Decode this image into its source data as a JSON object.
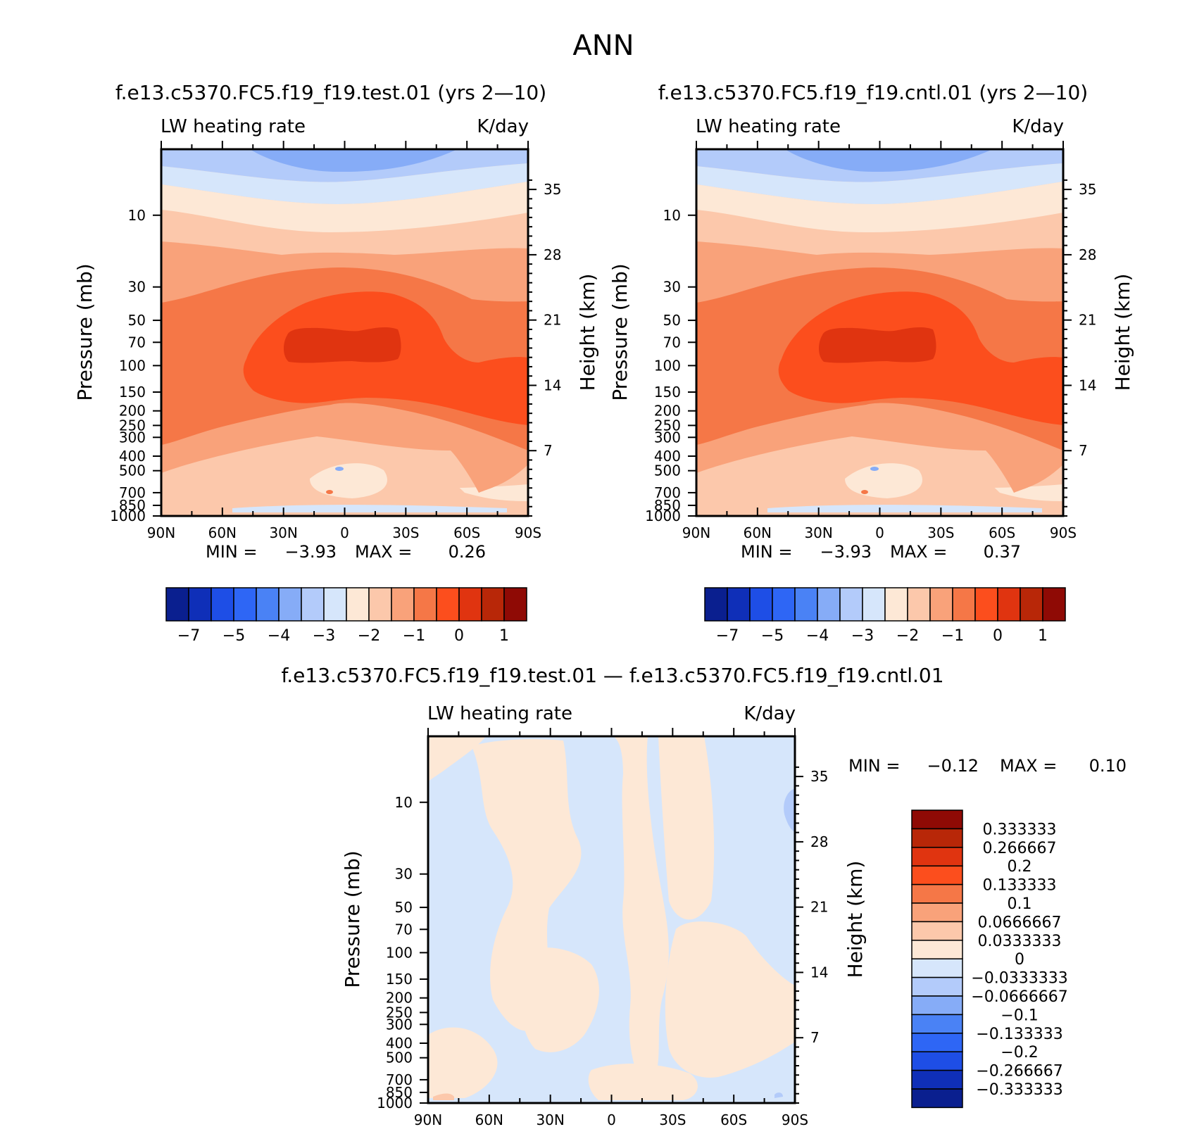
{
  "figure_title": "ANN",
  "chart_data": [
    {
      "type": "heatmap",
      "id": "test",
      "title": "f.e13.c5370.FC5.f19_f19.test.01 (yrs 2—10)",
      "variable_label": "LW heating rate",
      "units_label": "K/day",
      "ylabel": "Pressure (mb)",
      "y2label": "Height (km)",
      "x_tick_labels": [
        "90N",
        "60N",
        "30N",
        "0",
        "30S",
        "60S",
        "90S"
      ],
      "pressure_ticks": [
        "10",
        "30",
        "50",
        "70",
        "100",
        "150",
        "200",
        "250",
        "300",
        "400",
        "500",
        "700",
        "850",
        "1000"
      ],
      "height_ticks": [
        "35",
        "28",
        "21",
        "14",
        "7"
      ],
      "min_label": "MIN =",
      "min_value": "−3.93",
      "max_label": "MAX =",
      "max_value": "0.26",
      "colorbar_labels": [
        "−7",
        "−5",
        "−4",
        "−3",
        "−2",
        "−1",
        "0",
        "1"
      ]
    },
    {
      "type": "heatmap",
      "id": "cntl",
      "title": "f.e13.c5370.FC5.f19_f19.cntl.01 (yrs 2—10)",
      "variable_label": "LW heating rate",
      "units_label": "K/day",
      "ylabel": "Pressure (mb)",
      "y2label": "Height (km)",
      "x_tick_labels": [
        "90N",
        "60N",
        "30N",
        "0",
        "30S",
        "60S",
        "90S"
      ],
      "pressure_ticks": [
        "10",
        "30",
        "50",
        "70",
        "100",
        "150",
        "200",
        "250",
        "300",
        "400",
        "500",
        "700",
        "850",
        "1000"
      ],
      "height_ticks": [
        "35",
        "28",
        "21",
        "14",
        "7"
      ],
      "min_label": "MIN =",
      "min_value": "−3.93",
      "max_label": "MAX =",
      "max_value": "0.37",
      "colorbar_labels": [
        "−7",
        "−5",
        "−4",
        "−3",
        "−2",
        "−1",
        "0",
        "1"
      ]
    },
    {
      "type": "heatmap",
      "id": "diff",
      "title": "f.e13.c5370.FC5.f19_f19.test.01 — f.e13.c5370.FC5.f19_f19.cntl.01",
      "variable_label": "LW heating rate",
      "units_label": "K/day",
      "ylabel": "Pressure (mb)",
      "y2label": "Height (km)",
      "x_tick_labels": [
        "90N",
        "60N",
        "30N",
        "0",
        "30S",
        "60S",
        "90S"
      ],
      "pressure_ticks": [
        "10",
        "30",
        "50",
        "70",
        "100",
        "150",
        "200",
        "250",
        "300",
        "400",
        "500",
        "700",
        "850",
        "1000"
      ],
      "height_ticks": [
        "35",
        "28",
        "21",
        "14",
        "7"
      ],
      "min_label": "MIN =",
      "min_value": "−0.12",
      "max_label": "MAX =",
      "max_value": "0.10",
      "colorbar_labels": [
        "0.333333",
        "0.266667",
        "0.2",
        "0.133333",
        "0.1",
        "0.0666667",
        "0.0333333",
        "0",
        "−0.0333333",
        "−0.0666667",
        "−0.1",
        "−0.133333",
        "−0.2",
        "−0.266667",
        "−0.333333"
      ]
    }
  ],
  "colors": {
    "palette": [
      "#0a1f8f",
      "#0f2fb8",
      "#1e4ee6",
      "#2e66f5",
      "#4a82f5",
      "#86acf7",
      "#b3cbfa",
      "#d6e6fb",
      "#fde8d6",
      "#fcc8ab",
      "#f9a27a",
      "#f57747",
      "#fc4e1d",
      "#e03410",
      "#b82708",
      "#8f0a05"
    ],
    "diff_palette": [
      "#8f0a05",
      "#b82708",
      "#e03410",
      "#fc4e1d",
      "#f57747",
      "#f9a27a",
      "#fcc8ab",
      "#fde8d6",
      "#d6e6fb",
      "#b3cbfa",
      "#86acf7",
      "#4a82f5",
      "#2e66f5",
      "#1e4ee6",
      "#0f2fb8",
      "#0a1f8f"
    ]
  }
}
